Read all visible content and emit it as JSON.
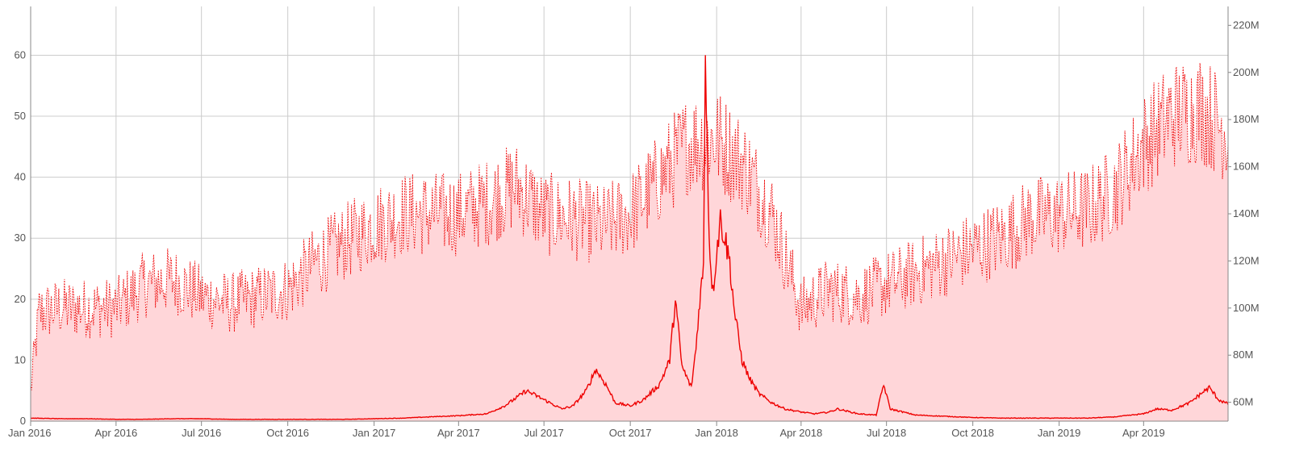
{
  "chart_data": {
    "type": "line",
    "title": "",
    "xlabel": "",
    "ylabel": "",
    "x_range": [
      "2016-01-01",
      "2019-06-30"
    ],
    "x_ticks": [
      {
        "date": "2016-01-01",
        "label": "Jan 2016"
      },
      {
        "date": "2016-04-01",
        "label": "Apr 2016"
      },
      {
        "date": "2016-07-01",
        "label": "Jul 2016"
      },
      {
        "date": "2016-10-01",
        "label": "Oct 2016"
      },
      {
        "date": "2017-01-01",
        "label": "Jan 2017"
      },
      {
        "date": "2017-04-01",
        "label": "Apr 2017"
      },
      {
        "date": "2017-07-01",
        "label": "Jul 2017"
      },
      {
        "date": "2017-10-01",
        "label": "Oct 2017"
      },
      {
        "date": "2018-01-01",
        "label": "Jan 2018"
      },
      {
        "date": "2018-04-01",
        "label": "Apr 2018"
      },
      {
        "date": "2018-07-01",
        "label": "Jul 2018"
      },
      {
        "date": "2018-10-01",
        "label": "Oct 2018"
      },
      {
        "date": "2019-01-01",
        "label": "Jan 2019"
      },
      {
        "date": "2019-04-01",
        "label": "Apr 2019"
      }
    ],
    "y_left": {
      "ylim": [
        0,
        68
      ],
      "ticks": [
        0,
        10,
        20,
        30,
        40,
        50,
        60
      ]
    },
    "y_right": {
      "ylim": [
        52000000,
        228000000
      ],
      "ticks": [
        60000000,
        80000000,
        100000000,
        120000000,
        140000000,
        160000000,
        180000000,
        200000000,
        220000000
      ],
      "tick_labels": [
        "60M",
        "80M",
        "100M",
        "120M",
        "140M",
        "160M",
        "180M",
        "200M",
        "220M"
      ]
    },
    "grid": true,
    "colors": {
      "line": "#ee0000",
      "fill": "#ffd6d9",
      "grid": "#cccccc",
      "axis": "#888888"
    },
    "series": [
      {
        "axis": "left",
        "style": "solid",
        "points": [
          [
            "2016-01-01",
            0.5
          ],
          [
            "2016-02-01",
            0.4
          ],
          [
            "2016-03-01",
            0.4
          ],
          [
            "2016-04-01",
            0.3
          ],
          [
            "2016-05-01",
            0.3
          ],
          [
            "2016-06-01",
            0.4
          ],
          [
            "2016-07-01",
            0.4
          ],
          [
            "2016-08-01",
            0.3
          ],
          [
            "2016-09-01",
            0.3
          ],
          [
            "2016-10-01",
            0.3
          ],
          [
            "2016-11-01",
            0.3
          ],
          [
            "2016-12-01",
            0.3
          ],
          [
            "2017-01-01",
            0.4
          ],
          [
            "2017-02-01",
            0.5
          ],
          [
            "2017-03-01",
            0.7
          ],
          [
            "2017-04-01",
            0.9
          ],
          [
            "2017-05-01",
            1.2
          ],
          [
            "2017-05-20",
            2.5
          ],
          [
            "2017-06-05",
            4.2
          ],
          [
            "2017-06-12",
            5.0
          ],
          [
            "2017-06-25",
            4.0
          ],
          [
            "2017-07-05",
            3.2
          ],
          [
            "2017-07-20",
            2.0
          ],
          [
            "2017-08-01",
            2.5
          ],
          [
            "2017-08-15",
            5.0
          ],
          [
            "2017-08-25",
            8.5
          ],
          [
            "2017-09-05",
            6.0
          ],
          [
            "2017-09-15",
            3.0
          ],
          [
            "2017-10-01",
            2.5
          ],
          [
            "2017-10-15",
            3.5
          ],
          [
            "2017-11-01",
            6.0
          ],
          [
            "2017-11-12",
            10.0
          ],
          [
            "2017-11-18",
            20.0
          ],
          [
            "2017-11-25",
            9.0
          ],
          [
            "2017-12-05",
            5.5
          ],
          [
            "2017-12-10",
            12.0
          ],
          [
            "2017-12-14",
            20.0
          ],
          [
            "2017-12-18",
            25.0
          ],
          [
            "2017-12-20",
            62.0
          ],
          [
            "2017-12-24",
            30.0
          ],
          [
            "2017-12-28",
            21.0
          ],
          [
            "2018-01-01",
            28.0
          ],
          [
            "2018-01-05",
            33.0
          ],
          [
            "2018-01-10",
            30.0
          ],
          [
            "2018-01-15",
            26.0
          ],
          [
            "2018-01-20",
            18.0
          ],
          [
            "2018-01-28",
            10.0
          ],
          [
            "2018-02-05",
            7.0
          ],
          [
            "2018-02-15",
            4.5
          ],
          [
            "2018-03-01",
            3.0
          ],
          [
            "2018-03-15",
            2.0
          ],
          [
            "2018-04-01",
            1.5
          ],
          [
            "2018-04-15",
            1.2
          ],
          [
            "2018-05-01",
            1.5
          ],
          [
            "2018-05-10",
            2.0
          ],
          [
            "2018-06-01",
            1.2
          ],
          [
            "2018-06-20",
            1.0
          ],
          [
            "2018-06-28",
            6.0
          ],
          [
            "2018-07-05",
            2.0
          ],
          [
            "2018-08-01",
            1.0
          ],
          [
            "2018-09-01",
            0.8
          ],
          [
            "2018-10-01",
            0.6
          ],
          [
            "2018-11-01",
            0.5
          ],
          [
            "2018-12-01",
            0.5
          ],
          [
            "2019-01-01",
            0.5
          ],
          [
            "2019-02-01",
            0.5
          ],
          [
            "2019-03-01",
            0.7
          ],
          [
            "2019-04-01",
            1.2
          ],
          [
            "2019-04-15",
            2.0
          ],
          [
            "2019-05-01",
            1.8
          ],
          [
            "2019-05-20",
            3.0
          ],
          [
            "2019-06-01",
            4.5
          ],
          [
            "2019-06-10",
            5.5
          ],
          [
            "2019-06-20",
            3.5
          ],
          [
            "2019-06-30",
            2.8
          ]
        ]
      },
      {
        "axis": "right",
        "style": "dotted",
        "filled": true,
        "points": [
          [
            "2016-01-01",
            65000000
          ],
          [
            "2016-01-10",
            98000000
          ],
          [
            "2016-02-01",
            100000000
          ],
          [
            "2016-03-01",
            100000000
          ],
          [
            "2016-04-01",
            100000000
          ],
          [
            "2016-05-01",
            110000000
          ],
          [
            "2016-06-01",
            112000000
          ],
          [
            "2016-07-01",
            105000000
          ],
          [
            "2016-08-01",
            102000000
          ],
          [
            "2016-09-01",
            105000000
          ],
          [
            "2016-10-01",
            108000000
          ],
          [
            "2016-11-01",
            120000000
          ],
          [
            "2016-12-01",
            128000000
          ],
          [
            "2017-01-01",
            135000000
          ],
          [
            "2017-02-01",
            140000000
          ],
          [
            "2017-03-01",
            140000000
          ],
          [
            "2017-04-01",
            140000000
          ],
          [
            "2017-05-01",
            145000000
          ],
          [
            "2017-06-01",
            152000000
          ],
          [
            "2017-07-01",
            140000000
          ],
          [
            "2017-08-01",
            138000000
          ],
          [
            "2017-09-01",
            135000000
          ],
          [
            "2017-10-01",
            140000000
          ],
          [
            "2017-11-01",
            155000000
          ],
          [
            "2017-12-01",
            170000000
          ],
          [
            "2018-01-01",
            172000000
          ],
          [
            "2018-02-01",
            160000000
          ],
          [
            "2018-03-01",
            140000000
          ],
          [
            "2018-04-01",
            100000000
          ],
          [
            "2018-05-01",
            108000000
          ],
          [
            "2018-06-01",
            105000000
          ],
          [
            "2018-07-01",
            110000000
          ],
          [
            "2018-08-01",
            115000000
          ],
          [
            "2018-09-01",
            120000000
          ],
          [
            "2018-10-01",
            125000000
          ],
          [
            "2018-11-01",
            130000000
          ],
          [
            "2018-12-01",
            138000000
          ],
          [
            "2019-01-01",
            140000000
          ],
          [
            "2019-02-01",
            142000000
          ],
          [
            "2019-03-01",
            150000000
          ],
          [
            "2019-04-01",
            170000000
          ],
          [
            "2019-05-01",
            182000000
          ],
          [
            "2019-06-01",
            185000000
          ],
          [
            "2019-06-30",
            175000000
          ]
        ]
      }
    ]
  }
}
